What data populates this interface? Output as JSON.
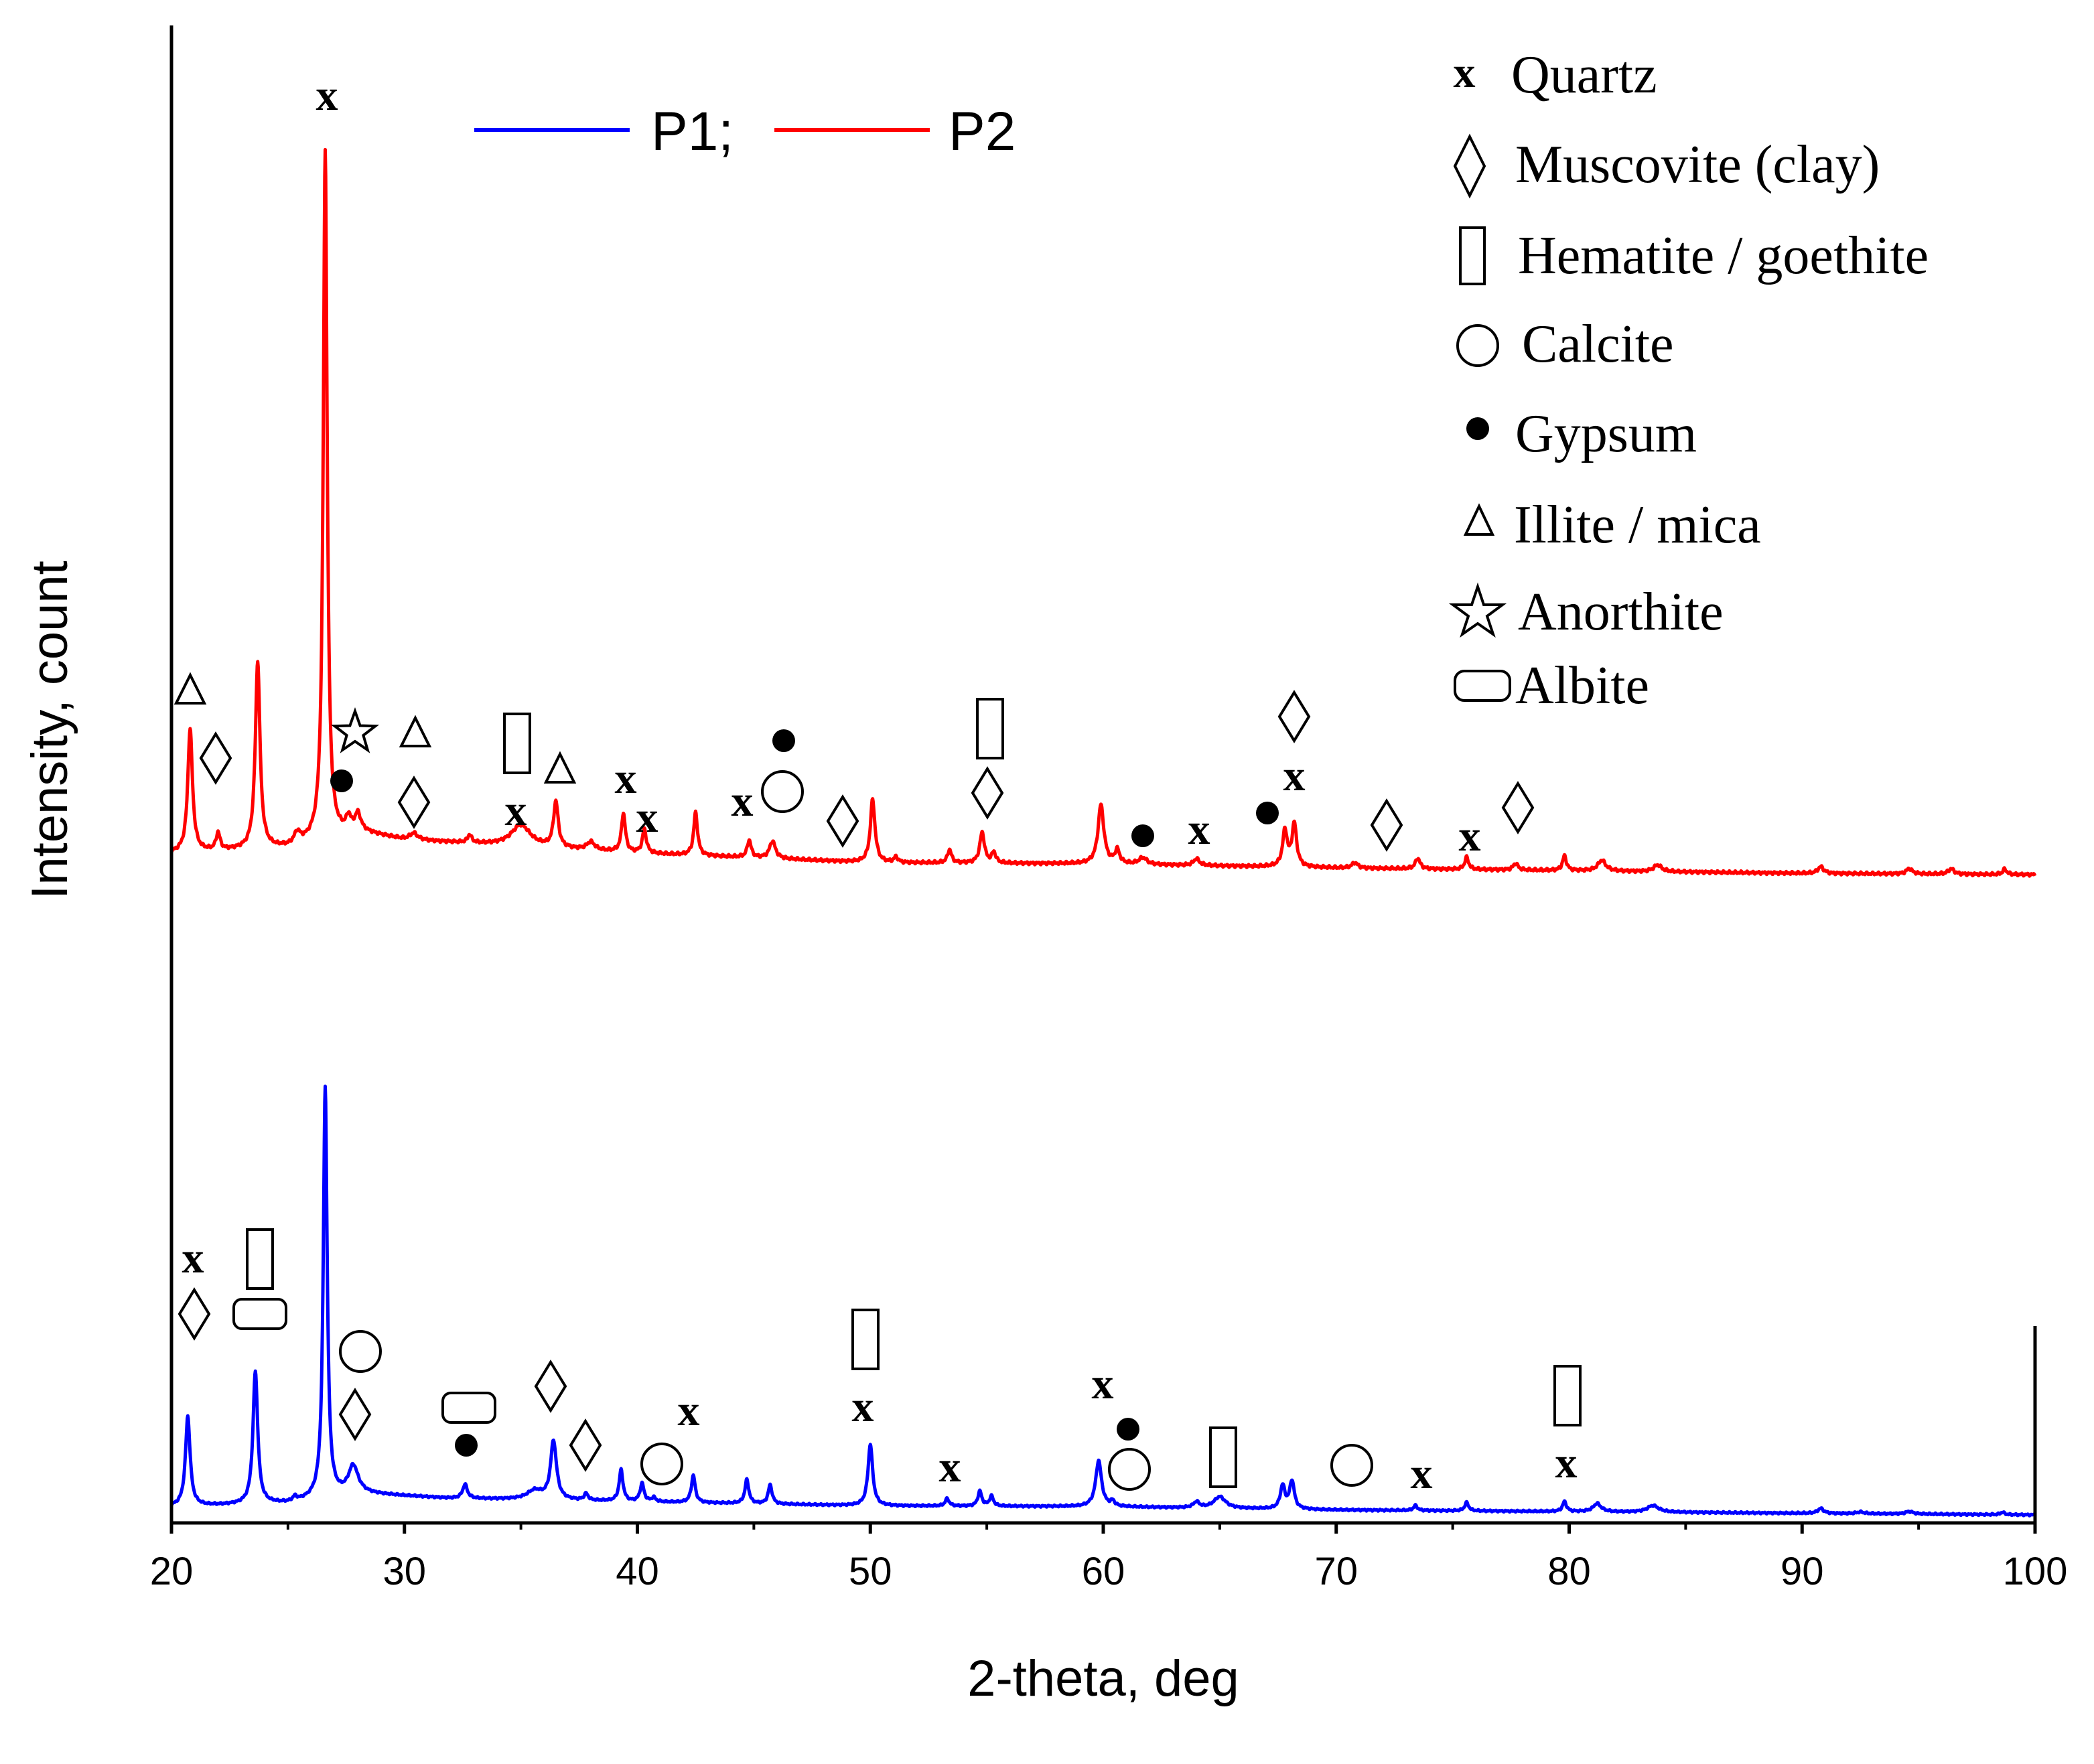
{
  "chart_data": {
    "type": "line",
    "title": "",
    "xlabel": "2-theta, deg",
    "ylabel": "Intensity, count",
    "xlim": [
      20,
      100
    ],
    "xticks": [
      20,
      30,
      40,
      50,
      60,
      70,
      80,
      90,
      100
    ],
    "yticks": [],
    "grid": false,
    "series_legend": {
      "placement": "top-center",
      "entries": [
        {
          "label": "P1;",
          "color": "#0000ff"
        },
        {
          "label": "P2",
          "color": "#ff0000"
        }
      ]
    },
    "phase_legend": {
      "placement": "top-right",
      "entries": [
        {
          "symbol": "x",
          "label": "Quartz"
        },
        {
          "symbol": "diamond",
          "label": "Muscovite (clay)"
        },
        {
          "symbol": "rect",
          "label": "Hematite / goethite"
        },
        {
          "symbol": "circle",
          "label": "Calcite"
        },
        {
          "symbol": "dot",
          "label": "Gypsum"
        },
        {
          "symbol": "triangle",
          "label": "Illite / mica"
        },
        {
          "symbol": "star",
          "label": "Anorthite"
        },
        {
          "symbol": "rounded-rect",
          "label": "Albite"
        }
      ]
    },
    "series": [
      {
        "name": "P1",
        "color": "#0000ff",
        "baseline": [
          [
            20,
            1.0
          ],
          [
            25,
            1.4
          ],
          [
            28,
            2.6
          ],
          [
            32,
            2.0
          ],
          [
            40,
            1.6
          ],
          [
            50,
            1.1
          ],
          [
            60,
            1.0
          ],
          [
            70,
            0.6
          ],
          [
            80,
            0.4
          ],
          [
            90,
            0.2
          ],
          [
            100,
            0.0
          ]
        ],
        "peaks": [
          {
            "x": 20.7,
            "h": 10.9,
            "w": 0.12
          },
          {
            "x": 23.6,
            "h": 16.1,
            "w": 0.12
          },
          {
            "x": 25.3,
            "h": 0.5,
            "w": 0.1
          },
          {
            "x": 26.6,
            "h": 49.8,
            "w": 0.1
          },
          {
            "x": 27.8,
            "h": 3.3,
            "w": 0.25
          },
          {
            "x": 32.6,
            "h": 1.7,
            "w": 0.12
          },
          {
            "x": 35.6,
            "h": 1.1,
            "w": 0.4
          },
          {
            "x": 36.4,
            "h": 7.1,
            "w": 0.15
          },
          {
            "x": 37.8,
            "h": 0.8,
            "w": 0.1
          },
          {
            "x": 39.3,
            "h": 3.8,
            "w": 0.1
          },
          {
            "x": 40.2,
            "h": 2.2,
            "w": 0.1
          },
          {
            "x": 40.7,
            "h": 0.5,
            "w": 0.1
          },
          {
            "x": 42.4,
            "h": 3.3,
            "w": 0.1
          },
          {
            "x": 44.7,
            "h": 2.9,
            "w": 0.1
          },
          {
            "x": 45.7,
            "h": 2.3,
            "w": 0.1
          },
          {
            "x": 50.0,
            "h": 7.5,
            "w": 0.12
          },
          {
            "x": 53.3,
            "h": 0.9,
            "w": 0.1
          },
          {
            "x": 54.7,
            "h": 1.8,
            "w": 0.1
          },
          {
            "x": 55.2,
            "h": 1.2,
            "w": 0.1
          },
          {
            "x": 59.8,
            "h": 5.6,
            "w": 0.15
          },
          {
            "x": 60.4,
            "h": 0.6,
            "w": 0.1
          },
          {
            "x": 64.0,
            "h": 0.7,
            "w": 0.15
          },
          {
            "x": 65.0,
            "h": 1.4,
            "w": 0.3
          },
          {
            "x": 67.7,
            "h": 2.8,
            "w": 0.12
          },
          {
            "x": 68.1,
            "h": 3.4,
            "w": 0.12
          },
          {
            "x": 73.4,
            "h": 0.6,
            "w": 0.1
          },
          {
            "x": 75.6,
            "h": 1.0,
            "w": 0.1
          },
          {
            "x": 79.8,
            "h": 1.2,
            "w": 0.1
          },
          {
            "x": 81.2,
            "h": 1.0,
            "w": 0.2
          },
          {
            "x": 83.6,
            "h": 0.8,
            "w": 0.3
          },
          {
            "x": 90.8,
            "h": 0.6,
            "w": 0.15
          },
          {
            "x": 92.5,
            "h": 0.2,
            "w": 0.2
          },
          {
            "x": 94.6,
            "h": 0.3,
            "w": 0.2
          },
          {
            "x": 98.6,
            "h": 0.3,
            "w": 0.1
          }
        ]
      },
      {
        "name": "P2",
        "color": "#ff0000",
        "baseline": [
          [
            20,
            1.6
          ],
          [
            25,
            2.0
          ],
          [
            28,
            3.2
          ],
          [
            30,
            2.6
          ],
          [
            40,
            1.6
          ],
          [
            50,
            0.9
          ],
          [
            60,
            0.8
          ],
          [
            70,
            0.5
          ],
          [
            80,
            0.3
          ],
          [
            90,
            0.1
          ],
          [
            100,
            0.0
          ]
        ],
        "peaks": [
          {
            "x": 20.8,
            "h": 9.2,
            "w": 0.12
          },
          {
            "x": 22.0,
            "h": 1.3,
            "w": 0.1
          },
          {
            "x": 23.7,
            "h": 14.0,
            "w": 0.12
          },
          {
            "x": 25.4,
            "h": 0.8,
            "w": 0.15
          },
          {
            "x": 26.6,
            "h": 51.4,
            "w": 0.1
          },
          {
            "x": 27.6,
            "h": 1.0,
            "w": 0.12
          },
          {
            "x": 28.0,
            "h": 1.2,
            "w": 0.15
          },
          {
            "x": 30.4,
            "h": 0.5,
            "w": 0.2
          },
          {
            "x": 32.8,
            "h": 0.6,
            "w": 0.1
          },
          {
            "x": 35.0,
            "h": 1.6,
            "w": 0.5
          },
          {
            "x": 36.5,
            "h": 3.4,
            "w": 0.12
          },
          {
            "x": 38.0,
            "h": 0.6,
            "w": 0.2
          },
          {
            "x": 39.4,
            "h": 2.9,
            "w": 0.1
          },
          {
            "x": 40.3,
            "h": 1.8,
            "w": 0.1
          },
          {
            "x": 42.5,
            "h": 3.2,
            "w": 0.1
          },
          {
            "x": 44.8,
            "h": 1.3,
            "w": 0.1
          },
          {
            "x": 45.8,
            "h": 1.3,
            "w": 0.15
          },
          {
            "x": 50.1,
            "h": 4.7,
            "w": 0.12
          },
          {
            "x": 51.1,
            "h": 0.4,
            "w": 0.1
          },
          {
            "x": 53.4,
            "h": 1.0,
            "w": 0.1
          },
          {
            "x": 54.8,
            "h": 2.3,
            "w": 0.12
          },
          {
            "x": 55.3,
            "h": 0.8,
            "w": 0.1
          },
          {
            "x": 59.9,
            "h": 4.4,
            "w": 0.15
          },
          {
            "x": 60.6,
            "h": 1.0,
            "w": 0.12
          },
          {
            "x": 61.7,
            "h": 0.5,
            "w": 0.2
          },
          {
            "x": 64.0,
            "h": 0.5,
            "w": 0.15
          },
          {
            "x": 67.8,
            "h": 2.7,
            "w": 0.12
          },
          {
            "x": 68.2,
            "h": 3.2,
            "w": 0.12
          },
          {
            "x": 70.8,
            "h": 0.4,
            "w": 0.15
          },
          {
            "x": 73.5,
            "h": 0.8,
            "w": 0.12
          },
          {
            "x": 75.6,
            "h": 0.9,
            "w": 0.1
          },
          {
            "x": 77.7,
            "h": 0.5,
            "w": 0.12
          },
          {
            "x": 79.8,
            "h": 1.1,
            "w": 0.1
          },
          {
            "x": 81.4,
            "h": 0.8,
            "w": 0.2
          },
          {
            "x": 83.8,
            "h": 0.5,
            "w": 0.2
          },
          {
            "x": 90.8,
            "h": 0.5,
            "w": 0.15
          },
          {
            "x": 94.6,
            "h": 0.4,
            "w": 0.15
          },
          {
            "x": 96.4,
            "h": 0.4,
            "w": 0.15
          },
          {
            "x": 98.7,
            "h": 0.4,
            "w": 0.1
          }
        ]
      }
    ]
  }
}
